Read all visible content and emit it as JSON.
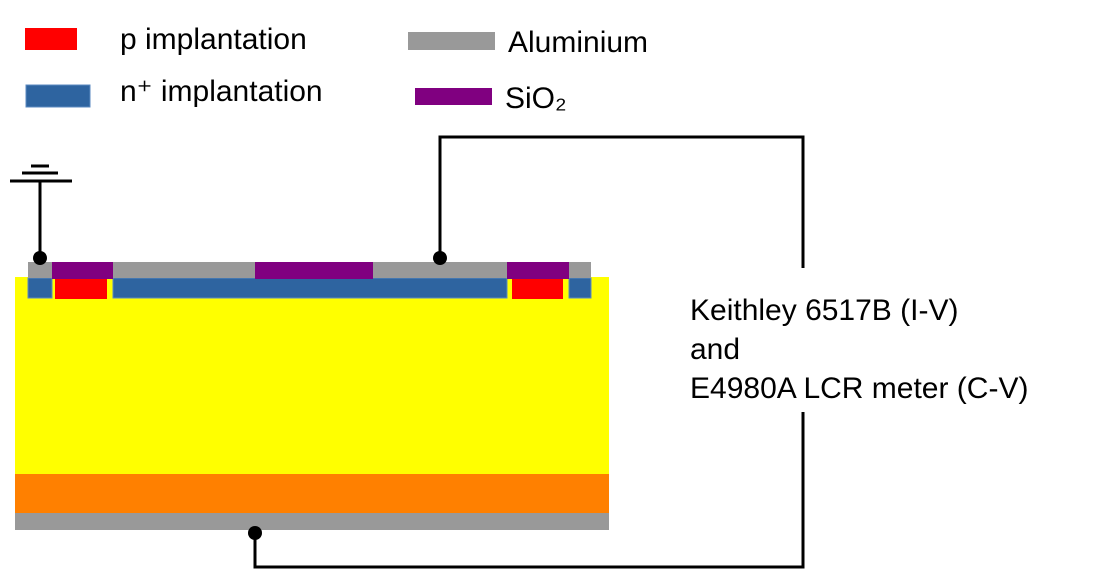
{
  "legend": {
    "items": [
      {
        "label": "p implantation"
      },
      {
        "label": "n⁺ implantation"
      },
      {
        "label": "Aluminium"
      },
      {
        "label": "SiO₂"
      }
    ]
  },
  "instrument": {
    "lines": [
      "Keithley 6517B (I-V)",
      "and",
      "E4980A LCR meter (C-V)"
    ]
  }
}
